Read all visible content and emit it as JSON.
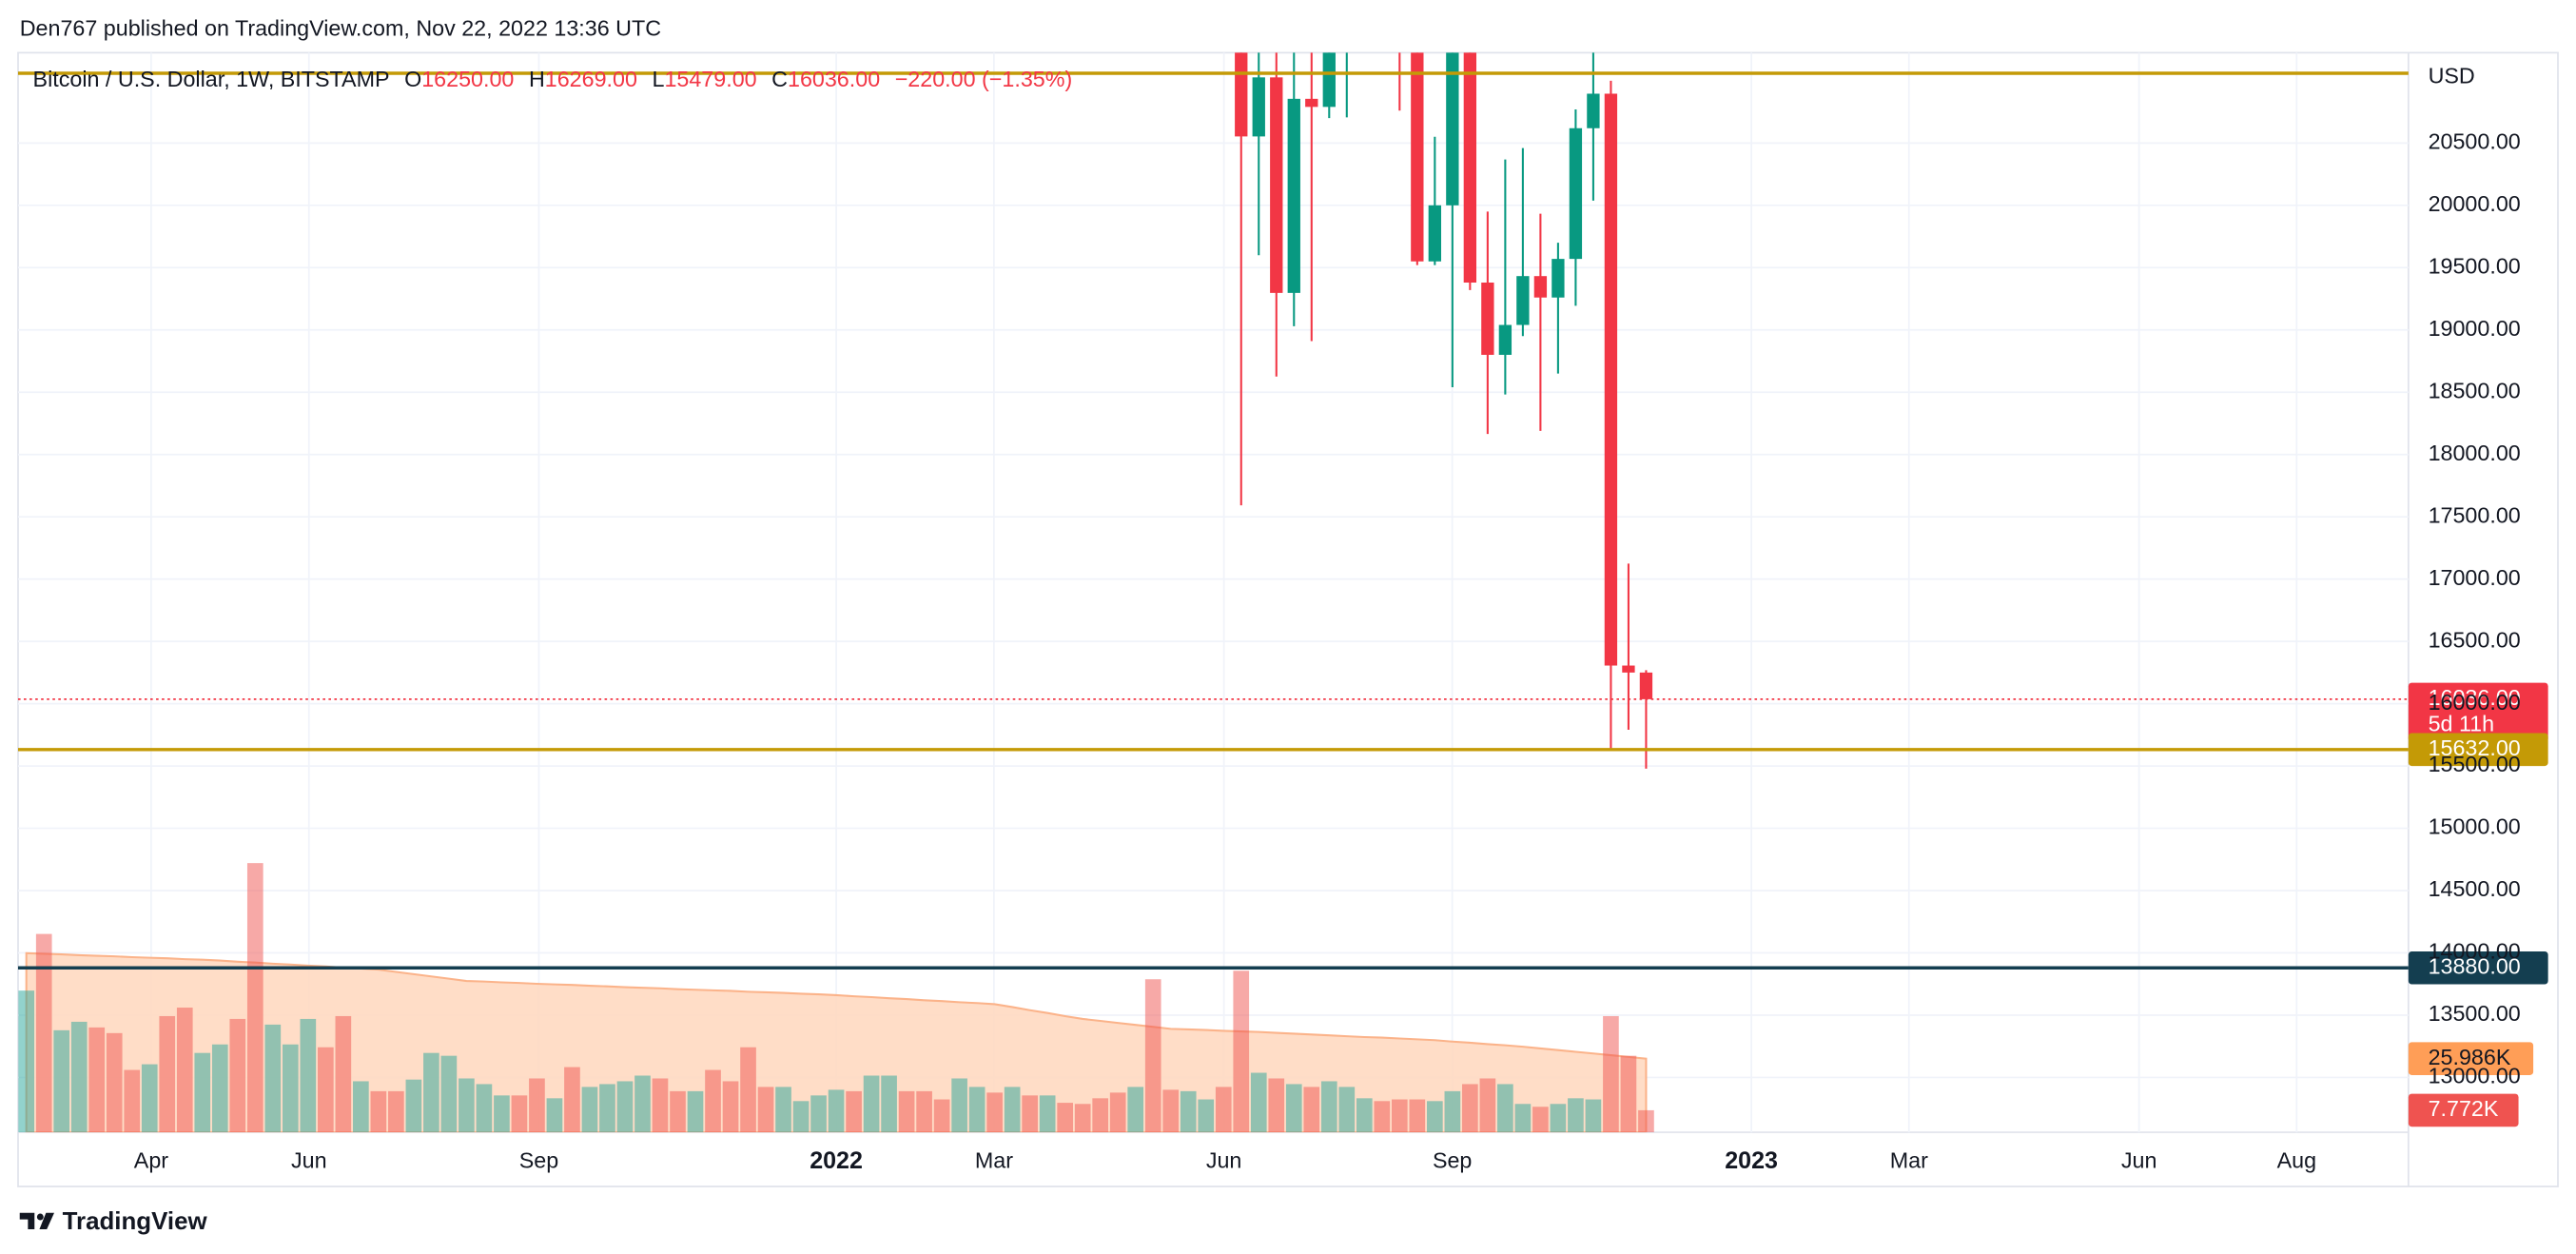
{
  "header": {
    "publisher": "Den767 published on TradingView.com, Nov 22, 2022 13:36 UTC",
    "brand": "TradingView"
  },
  "chart_data": {
    "type": "candlestick",
    "symbol": "Bitcoin / U.S. Dollar, 1W, BITSTAMP",
    "ohlc_legend": [
      {
        "key": "O",
        "value": "16250.00"
      },
      {
        "key": "H",
        "value": "16269.00"
      },
      {
        "key": "L",
        "value": "15479.00"
      },
      {
        "key": "C",
        "value": "16036.00"
      }
    ],
    "change": "−220.00 (−1.35%)",
    "currency": "USD",
    "x": [
      69,
      70,
      71,
      72,
      73,
      74,
      75,
      78,
      79,
      80,
      81,
      82,
      83,
      84,
      85,
      86,
      87,
      88,
      89,
      90,
      91,
      92
    ],
    "open": [
      26574,
      20553,
      21027,
      19297,
      20855,
      20790,
      22590,
      24440,
      21520,
      19550,
      20000,
      21650,
      19380,
      18800,
      19040,
      19432,
      19260,
      19570,
      20619,
      20896,
      16306,
      16250
    ],
    "high": [
      26895,
      21800,
      21539,
      22500,
      21650,
      24280,
      24670,
      25200,
      21850,
      20550,
      22800,
      22670,
      19950,
      20368,
      20460,
      19933,
      19700,
      20770,
      21470,
      21000,
      17124,
      16269
    ],
    "low": [
      17592,
      19600,
      18626,
      19030,
      18910,
      20700,
      20706,
      20760,
      19520,
      19520,
      18540,
      19320,
      18165,
      18482,
      18950,
      18190,
      18650,
      19194,
      20038,
      15633,
      15791,
      15479
    ],
    "close": [
      20553,
      21027,
      19297,
      20855,
      20790,
      22590,
      23634,
      21520,
      19550,
      20000,
      21650,
      19380,
      18800,
      19040,
      19432,
      19260,
      19570,
      20619,
      20896,
      16306,
      16250,
      16036
    ],
    "up_color": "#089981",
    "down_color": "#f23645",
    "xlim": [
      -0.47,
      135.3
    ],
    "xticks": [
      {
        "value": 7.09,
        "label": "Apr"
      },
      {
        "value": 16.05,
        "label": "Jun"
      },
      {
        "value": 29.11,
        "label": "Sep"
      },
      {
        "value": 46.0,
        "label": "2022"
      },
      {
        "value": 54.96,
        "label": "Mar"
      },
      {
        "value": 68.02,
        "label": "Jun"
      },
      {
        "value": 80.99,
        "label": "Sep"
      },
      {
        "value": 97.98,
        "label": "2023"
      },
      {
        "value": 106.93,
        "label": "Mar"
      },
      {
        "value": 120.0,
        "label": "Jun"
      },
      {
        "value": 128.95,
        "label": "Aug"
      }
    ],
    "ylim": [
      12560,
      21225
    ],
    "yticks": [
      {
        "value": 13000,
        "label": "13000.00"
      },
      {
        "value": 13500,
        "label": "13500.00"
      },
      {
        "value": 14000,
        "label": "14000.00"
      },
      {
        "value": 14500,
        "label": "14500.00"
      },
      {
        "value": 15000,
        "label": "15000.00"
      },
      {
        "value": 15500,
        "label": "15500.00"
      },
      {
        "value": 16000,
        "label": "16000.00"
      },
      {
        "value": 16500,
        "label": "16500.00"
      },
      {
        "value": 17000,
        "label": "17000.00"
      },
      {
        "value": 17500,
        "label": "17500.00"
      },
      {
        "value": 18000,
        "label": "18000.00"
      },
      {
        "value": 18500,
        "label": "18500.00"
      },
      {
        "value": 19000,
        "label": "19000.00"
      },
      {
        "value": 19500,
        "label": "19500.00"
      },
      {
        "value": 20000,
        "label": "20000.00"
      },
      {
        "value": 20500,
        "label": "20500.00"
      }
    ],
    "grid": true,
    "price_lines": [
      {
        "value": 21060,
        "color": "#c49a06"
      },
      {
        "value": 16036,
        "label": "16036.00",
        "sublabel": "5d 11h",
        "color": "#f23645",
        "style": "dotted"
      },
      {
        "value": 15632,
        "label": "15632.00",
        "color": "#c49a06"
      },
      {
        "value": 13880,
        "label": "13880.00",
        "color": "#143e50"
      }
    ],
    "volume": {
      "x": [
        0,
        1,
        2,
        3,
        4,
        5,
        6,
        7,
        8,
        9,
        10,
        11,
        12,
        13,
        14,
        15,
        16,
        17,
        18,
        19,
        20,
        21,
        22,
        23,
        24,
        25,
        26,
        27,
        28,
        29,
        30,
        31,
        32,
        33,
        34,
        35,
        36,
        37,
        38,
        39,
        40,
        41,
        42,
        43,
        44,
        45,
        46,
        47,
        48,
        49,
        50,
        51,
        52,
        53,
        54,
        55,
        56,
        57,
        58,
        59,
        60,
        61,
        62,
        63,
        64,
        65,
        66,
        67,
        68,
        69,
        70,
        71,
        72,
        73,
        74,
        75,
        76,
        77,
        78,
        79,
        80,
        81,
        82,
        83,
        84,
        85,
        86,
        87,
        88,
        89,
        90,
        91,
        92
      ],
      "values": [
        50,
        70,
        36,
        39,
        37,
        35,
        22,
        24,
        41,
        44,
        28,
        31,
        40,
        95,
        38,
        31,
        40,
        30,
        41,
        18,
        14.5,
        14.5,
        18.6,
        28,
        27,
        19,
        17,
        13,
        13,
        19,
        12,
        23,
        16,
        17,
        18,
        20,
        19,
        14.5,
        14.5,
        22,
        18,
        30,
        16,
        16,
        11,
        13,
        15,
        14.5,
        20,
        20,
        14.5,
        14.5,
        11.6,
        19,
        16,
        14,
        16,
        13,
        13,
        10.4,
        10,
        12,
        14,
        16,
        54,
        15,
        14.5,
        11.6,
        16,
        57,
        21,
        19,
        17,
        16,
        18,
        16,
        12,
        11,
        11.6,
        11.6,
        11,
        14.5,
        17,
        19,
        17,
        10,
        9,
        10,
        12,
        11.6,
        41,
        27,
        7.772
      ],
      "colors": [
        "#26a69a",
        "#ef5350",
        "#26a69a",
        "#26a69a",
        "#ef5350",
        "#ef5350",
        "#ef5350",
        "#26a69a",
        "#ef5350",
        "#ef5350",
        "#26a69a",
        "#26a69a",
        "#ef5350",
        "#ef5350",
        "#26a69a",
        "#26a69a",
        "#26a69a",
        "#ef5350",
        "#ef5350",
        "#26a69a",
        "#ef5350",
        "#ef5350",
        "#26a69a",
        "#26a69a",
        "#26a69a",
        "#26a69a",
        "#26a69a",
        "#26a69a",
        "#ef5350",
        "#ef5350",
        "#26a69a",
        "#ef5350",
        "#26a69a",
        "#26a69a",
        "#26a69a",
        "#26a69a",
        "#ef5350",
        "#ef5350",
        "#26a69a",
        "#ef5350",
        "#ef5350",
        "#ef5350",
        "#ef5350",
        "#26a69a",
        "#26a69a",
        "#26a69a",
        "#26a69a",
        "#ef5350",
        "#26a69a",
        "#26a69a",
        "#ef5350",
        "#ef5350",
        "#ef5350",
        "#26a69a",
        "#26a69a",
        "#ef5350",
        "#26a69a",
        "#ef5350",
        "#26a69a",
        "#ef5350",
        "#ef5350",
        "#ef5350",
        "#ef5350",
        "#26a69a",
        "#ef5350",
        "#ef5350",
        "#26a69a",
        "#26a69a",
        "#ef5350",
        "#ef5350",
        "#26a69a",
        "#ef5350",
        "#26a69a",
        "#ef5350",
        "#26a69a",
        "#26a69a",
        "#26a69a",
        "#ef5350",
        "#ef5350",
        "#ef5350",
        "#26a69a",
        "#26a69a",
        "#ef5350",
        "#ef5350",
        "#26a69a",
        "#26a69a",
        "#ef5350",
        "#26a69a",
        "#26a69a",
        "#26a69a",
        "#ef5350",
        "#ef5350",
        "#ef5350"
      ],
      "ylim": [
        0,
        381
      ],
      "last_label": "7.772K",
      "ma": {
        "values": [
          63.2,
          63.0,
          62.8,
          62.5,
          62.3,
          62.1,
          61.8,
          61.6,
          61.4,
          61.1,
          60.9,
          60.6,
          60.2,
          59.9,
          59.5,
          59.2,
          58.8,
          58.5,
          58.1,
          57.8,
          57.4,
          56.6,
          55.8,
          55.0,
          54.2,
          53.4,
          53.2,
          52.9,
          52.7,
          52.4,
          52.2,
          52.0,
          51.7,
          51.5,
          51.2,
          51.0,
          50.8,
          50.5,
          50.3,
          50.1,
          49.9,
          49.6,
          49.4,
          49.2,
          48.9,
          48.7,
          48.4,
          48.0,
          47.7,
          47.3,
          47.0,
          46.6,
          46.3,
          45.9,
          45.6,
          45.2,
          44.2,
          43.1,
          42.1,
          41.0,
          40.0,
          39.3,
          38.6,
          37.9,
          37.2,
          36.5,
          36.3,
          36.1,
          35.8,
          35.6,
          35.4,
          35.1,
          34.8,
          34.5,
          34.2,
          33.9,
          33.6,
          33.4,
          33.1,
          32.8,
          32.5,
          32.0,
          31.6,
          31.1,
          30.7,
          30.2,
          29.6,
          29.0,
          28.4,
          27.8,
          27.2,
          26.6,
          25.986
        ],
        "last_label": "25.986K",
        "color": "#fbb38a",
        "label_color": "#ff9e57"
      }
    }
  }
}
